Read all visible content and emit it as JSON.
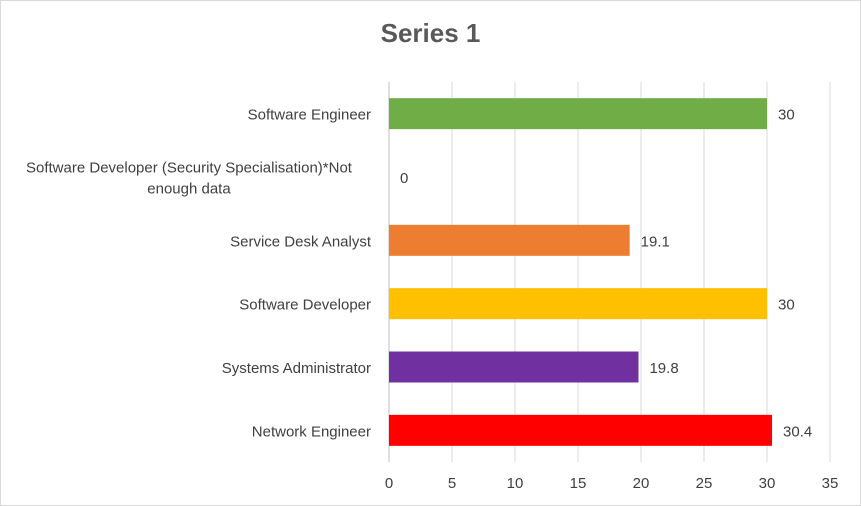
{
  "chart_data": {
    "type": "bar",
    "orientation": "horizontal",
    "title": "Series 1",
    "categories": [
      "Software Engineer",
      "Software Developer (Security Specialisation)*Not enough data",
      "Service Desk Analyst",
      "Software Developer",
      "Systems Administrator",
      "Network Engineer"
    ],
    "category_lines": [
      [
        "Software Engineer"
      ],
      [
        "Software Developer (Security Specialisation)*Not",
        "enough data"
      ],
      [
        "Service Desk Analyst"
      ],
      [
        "Software Developer"
      ],
      [
        "Systems Administrator"
      ],
      [
        "Network Engineer"
      ]
    ],
    "series": [
      {
        "values": [
          30,
          0,
          19.1,
          30,
          19.8,
          30.4
        ],
        "labels": [
          "30",
          "0",
          "19.1",
          "30",
          "19.8",
          "30.4"
        ],
        "colors": [
          "#70ad47",
          "#a5a5a5",
          "#ed7d31",
          "#ffc000",
          "#7030a0",
          "#ff0000"
        ]
      }
    ],
    "xlim": [
      0,
      35
    ],
    "xticks": [
      0,
      5,
      10,
      15,
      20,
      25,
      30,
      35
    ],
    "grid": true,
    "legend": "none"
  }
}
